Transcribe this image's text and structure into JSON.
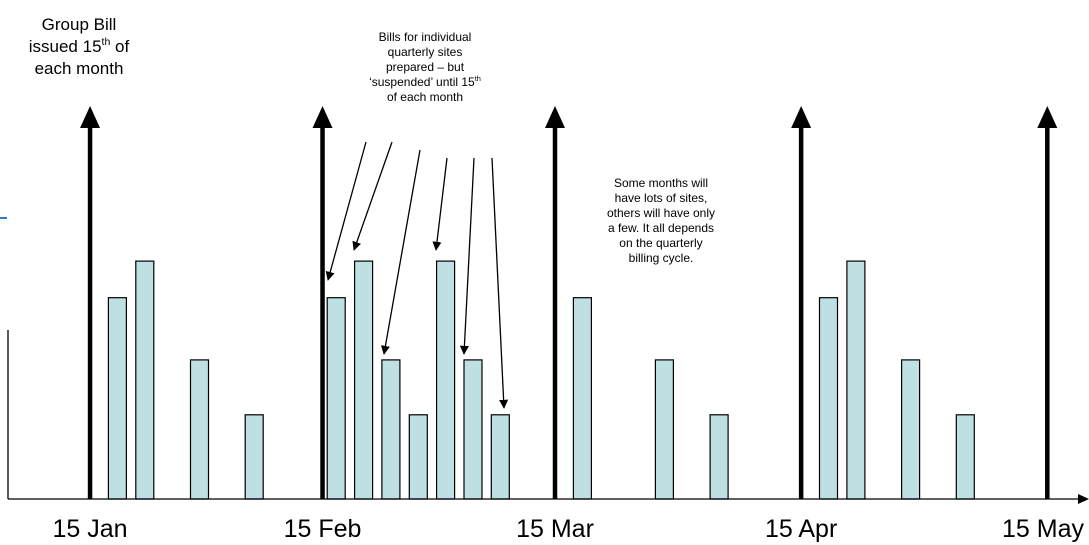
{
  "notes": {
    "group_bill": {
      "line1": "Group Bill",
      "line2_a": "issued 15",
      "line2_sup": "th",
      "line2_b": " of",
      "line3": "each month"
    },
    "bills_prepared": {
      "line1": "Bills for individual",
      "line2": "quarterly sites",
      "line3": "prepared – but",
      "line4_a": "‘suspended’ until 15",
      "line4_sup": "th",
      "line5": "of each month"
    },
    "some_months": {
      "line1": "Some months will",
      "line2": "have lots of sites,",
      "line3": "others will have only",
      "line4": "a few. It all depends",
      "line5": "on the quarterly",
      "line6": "billing cycle."
    }
  },
  "chart_data": {
    "type": "bar",
    "x_labels": [
      "15 Jan",
      "15 Feb",
      "15 Mar",
      "15 Apr",
      "15 May"
    ],
    "bars": [
      {
        "x": 4,
        "value": 5.5
      },
      {
        "x": 5,
        "value": 6.5
      },
      {
        "x": 7,
        "value": 3.8
      },
      {
        "x": 9,
        "value": 2.3
      },
      {
        "x": 12,
        "value": 5.5
      },
      {
        "x": 13,
        "value": 6.5
      },
      {
        "x": 14,
        "value": 3.8
      },
      {
        "x": 15,
        "value": 2.3
      },
      {
        "x": 16,
        "value": 6.5
      },
      {
        "x": 17,
        "value": 3.8
      },
      {
        "x": 18,
        "value": 2.3
      },
      {
        "x": 21,
        "value": 5.5
      },
      {
        "x": 24,
        "value": 3.8
      },
      {
        "x": 26,
        "value": 2.3
      },
      {
        "x": 30,
        "value": 5.5
      },
      {
        "x": 31,
        "value": 6.5
      },
      {
        "x": 33,
        "value": 3.8
      },
      {
        "x": 35,
        "value": 2.3
      }
    ],
    "month_markers_x": [
      3,
      11.5,
      20,
      29,
      38
    ],
    "bar_color": "#bfe0e2",
    "bar_stroke": "#000000"
  }
}
